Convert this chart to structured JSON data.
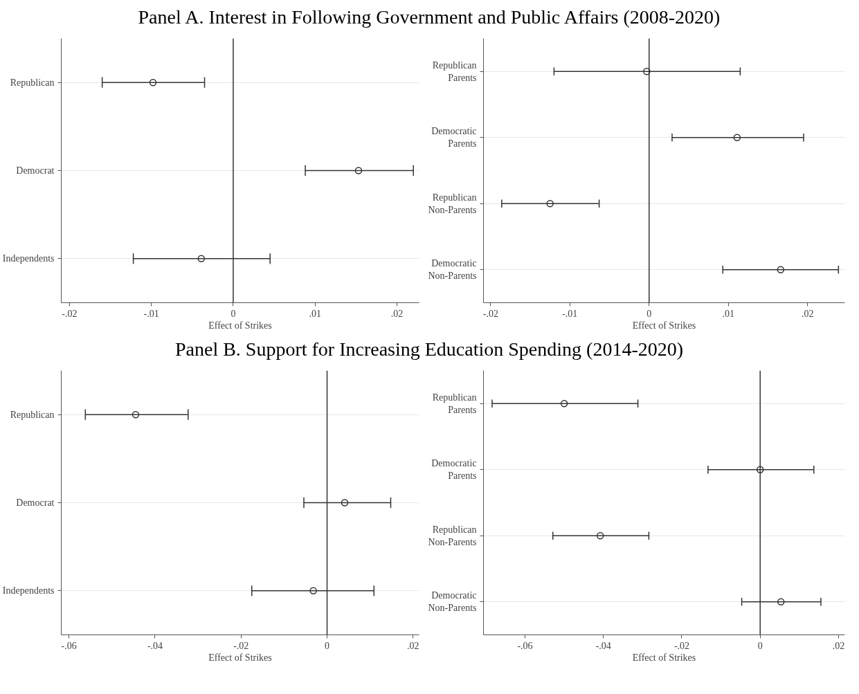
{
  "chart_data": [
    {
      "type": "scatter",
      "orientation": "horizontal",
      "title": "Panel A. Interest in Following Government and Public Affairs (2008-2020)",
      "xlabel": "Effect of Strikes",
      "categories": [
        "Republican",
        "Democrat",
        "Independents"
      ],
      "values": [
        -0.0098,
        0.0153,
        -0.0039
      ],
      "errors": [
        [
          -0.016,
          -0.0035
        ],
        [
          0.0088,
          0.022
        ],
        [
          -0.0122,
          0.0045
        ]
      ],
      "color": "#333333",
      "marker": "circle",
      "grid": "y",
      "xlim": [
        -0.021,
        0.0227
      ],
      "xticks": [
        {
          "value": -0.02,
          "label": "-.02"
        },
        {
          "value": -0.01,
          "label": "-.01"
        },
        {
          "value": 0,
          "label": "0"
        },
        {
          "value": 0.01,
          "label": ".01"
        },
        {
          "value": 0.02,
          "label": ".02"
        }
      ],
      "ref_lines": [
        {
          "axis": "x",
          "value": 0,
          "color": "#333333"
        }
      ]
    },
    {
      "type": "scatter",
      "orientation": "horizontal",
      "xlabel": "Effect of Strikes",
      "categories": [
        "Republican\nParents",
        "Democratic\nParents",
        "Republican\nNon-Parents",
        "Democratic\nNon-Parents"
      ],
      "values": [
        -0.0003,
        0.0111,
        -0.0125,
        0.0166
      ],
      "errors": [
        [
          -0.012,
          0.0115
        ],
        [
          0.0029,
          0.0195
        ],
        [
          -0.0186,
          -0.0063
        ],
        [
          0.0093,
          0.0239
        ]
      ],
      "color": "#333333",
      "marker": "circle",
      "grid": "y",
      "xlim": [
        -0.0209,
        0.0247
      ],
      "xticks": [
        {
          "value": -0.02,
          "label": "-.02"
        },
        {
          "value": -0.01,
          "label": "-.01"
        },
        {
          "value": 0,
          "label": "0"
        },
        {
          "value": 0.01,
          "label": ".01"
        },
        {
          "value": 0.02,
          "label": ".02"
        }
      ],
      "ref_lines": [
        {
          "axis": "x",
          "value": 0,
          "color": "#333333"
        }
      ]
    },
    {
      "type": "scatter",
      "orientation": "horizontal",
      "title": "Panel B. Support for Increasing Education Spending (2014-2020)",
      "xlabel": "Effect of Strikes",
      "categories": [
        "Republican",
        "Democrat",
        "Independents"
      ],
      "values": [
        -0.0445,
        0.0041,
        -0.0032
      ],
      "errors": [
        [
          -0.0562,
          -0.0323
        ],
        [
          -0.0054,
          0.0148
        ],
        [
          -0.0175,
          0.0109
        ]
      ],
      "color": "#333333",
      "marker": "circle",
      "grid": "y",
      "xlim": [
        -0.0618,
        0.0214
      ],
      "xticks": [
        {
          "value": -0.06,
          "label": "-.06"
        },
        {
          "value": -0.04,
          "label": "-.04"
        },
        {
          "value": -0.02,
          "label": "-.02"
        },
        {
          "value": 0,
          "label": "0"
        },
        {
          "value": 0.02,
          "label": ".02"
        }
      ],
      "ref_lines": [
        {
          "axis": "x",
          "value": 0,
          "color": "#333333"
        }
      ]
    },
    {
      "type": "scatter",
      "orientation": "horizontal",
      "xlabel": "Effect of Strikes",
      "categories": [
        "Republican\nParents",
        "Democratic\nParents",
        "Republican\nNon-Parents",
        "Democratic\nNon-Parents"
      ],
      "values": [
        -0.05,
        0.0,
        -0.0408,
        0.0053
      ],
      "errors": [
        [
          -0.0684,
          -0.0312
        ],
        [
          -0.0133,
          0.0137
        ],
        [
          -0.0529,
          -0.0284
        ],
        [
          -0.0047,
          0.0155
        ]
      ],
      "color": "#333333",
      "marker": "circle",
      "grid": "y",
      "xlim": [
        -0.0706,
        0.0216
      ],
      "xticks": [
        {
          "value": -0.06,
          "label": "-.06"
        },
        {
          "value": -0.04,
          "label": "-.04"
        },
        {
          "value": -0.02,
          "label": "-.02"
        },
        {
          "value": 0,
          "label": "0"
        },
        {
          "value": 0.02,
          "label": ".02"
        }
      ],
      "ref_lines": [
        {
          "axis": "x",
          "value": 0,
          "color": "#333333"
        }
      ]
    }
  ]
}
